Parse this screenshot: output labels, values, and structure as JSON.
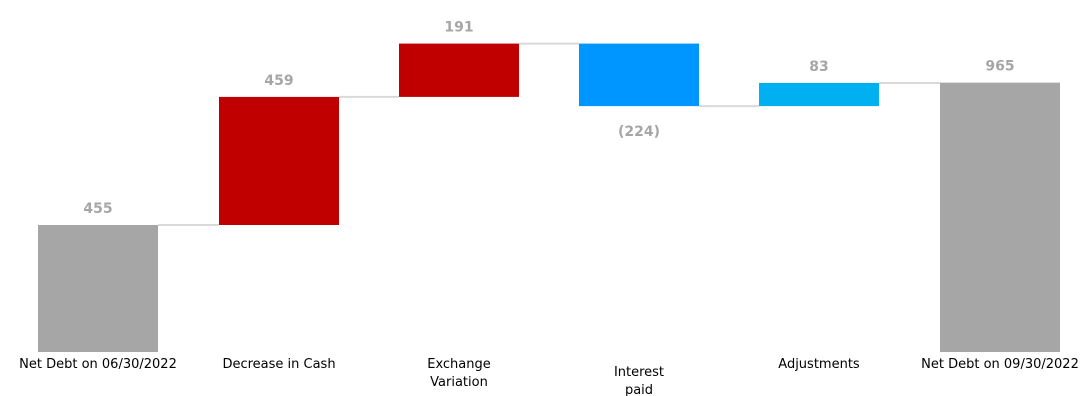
{
  "chart_data": {
    "type": "bar",
    "subtype": "waterfall",
    "categories": [
      "Net Debt on 06/30/2022",
      "Decrease in Cash",
      "Exchange Variation",
      "Interest paid",
      "Adjustments",
      "Net Debt on 09/30/2022"
    ],
    "category_lines": [
      [
        "Net Debt on 06/30/2022"
      ],
      [
        "Decrease in Cash"
      ],
      [
        "Exchange",
        "Variation"
      ],
      [
        "Interest",
        "paid"
      ],
      [
        "Adjustments"
      ],
      [
        "Net Debt on 09/30/2022"
      ]
    ],
    "values": [
      455,
      459,
      191,
      -224,
      83,
      965
    ],
    "value_labels": [
      "455",
      "459",
      "191",
      "(224)",
      "83",
      "965"
    ],
    "bar_kinds": [
      "total",
      "delta",
      "delta",
      "delta",
      "delta",
      "total"
    ],
    "colors": [
      "#a6a6a6",
      "#c00000",
      "#c00000",
      "#0096ff",
      "#00b0f0",
      "#a6a6a6"
    ],
    "connector_color": "#d9d9d9",
    "label_color": "#a6a6a6",
    "ylim": [
      0,
      1000
    ],
    "grid": false,
    "legend": "none"
  }
}
